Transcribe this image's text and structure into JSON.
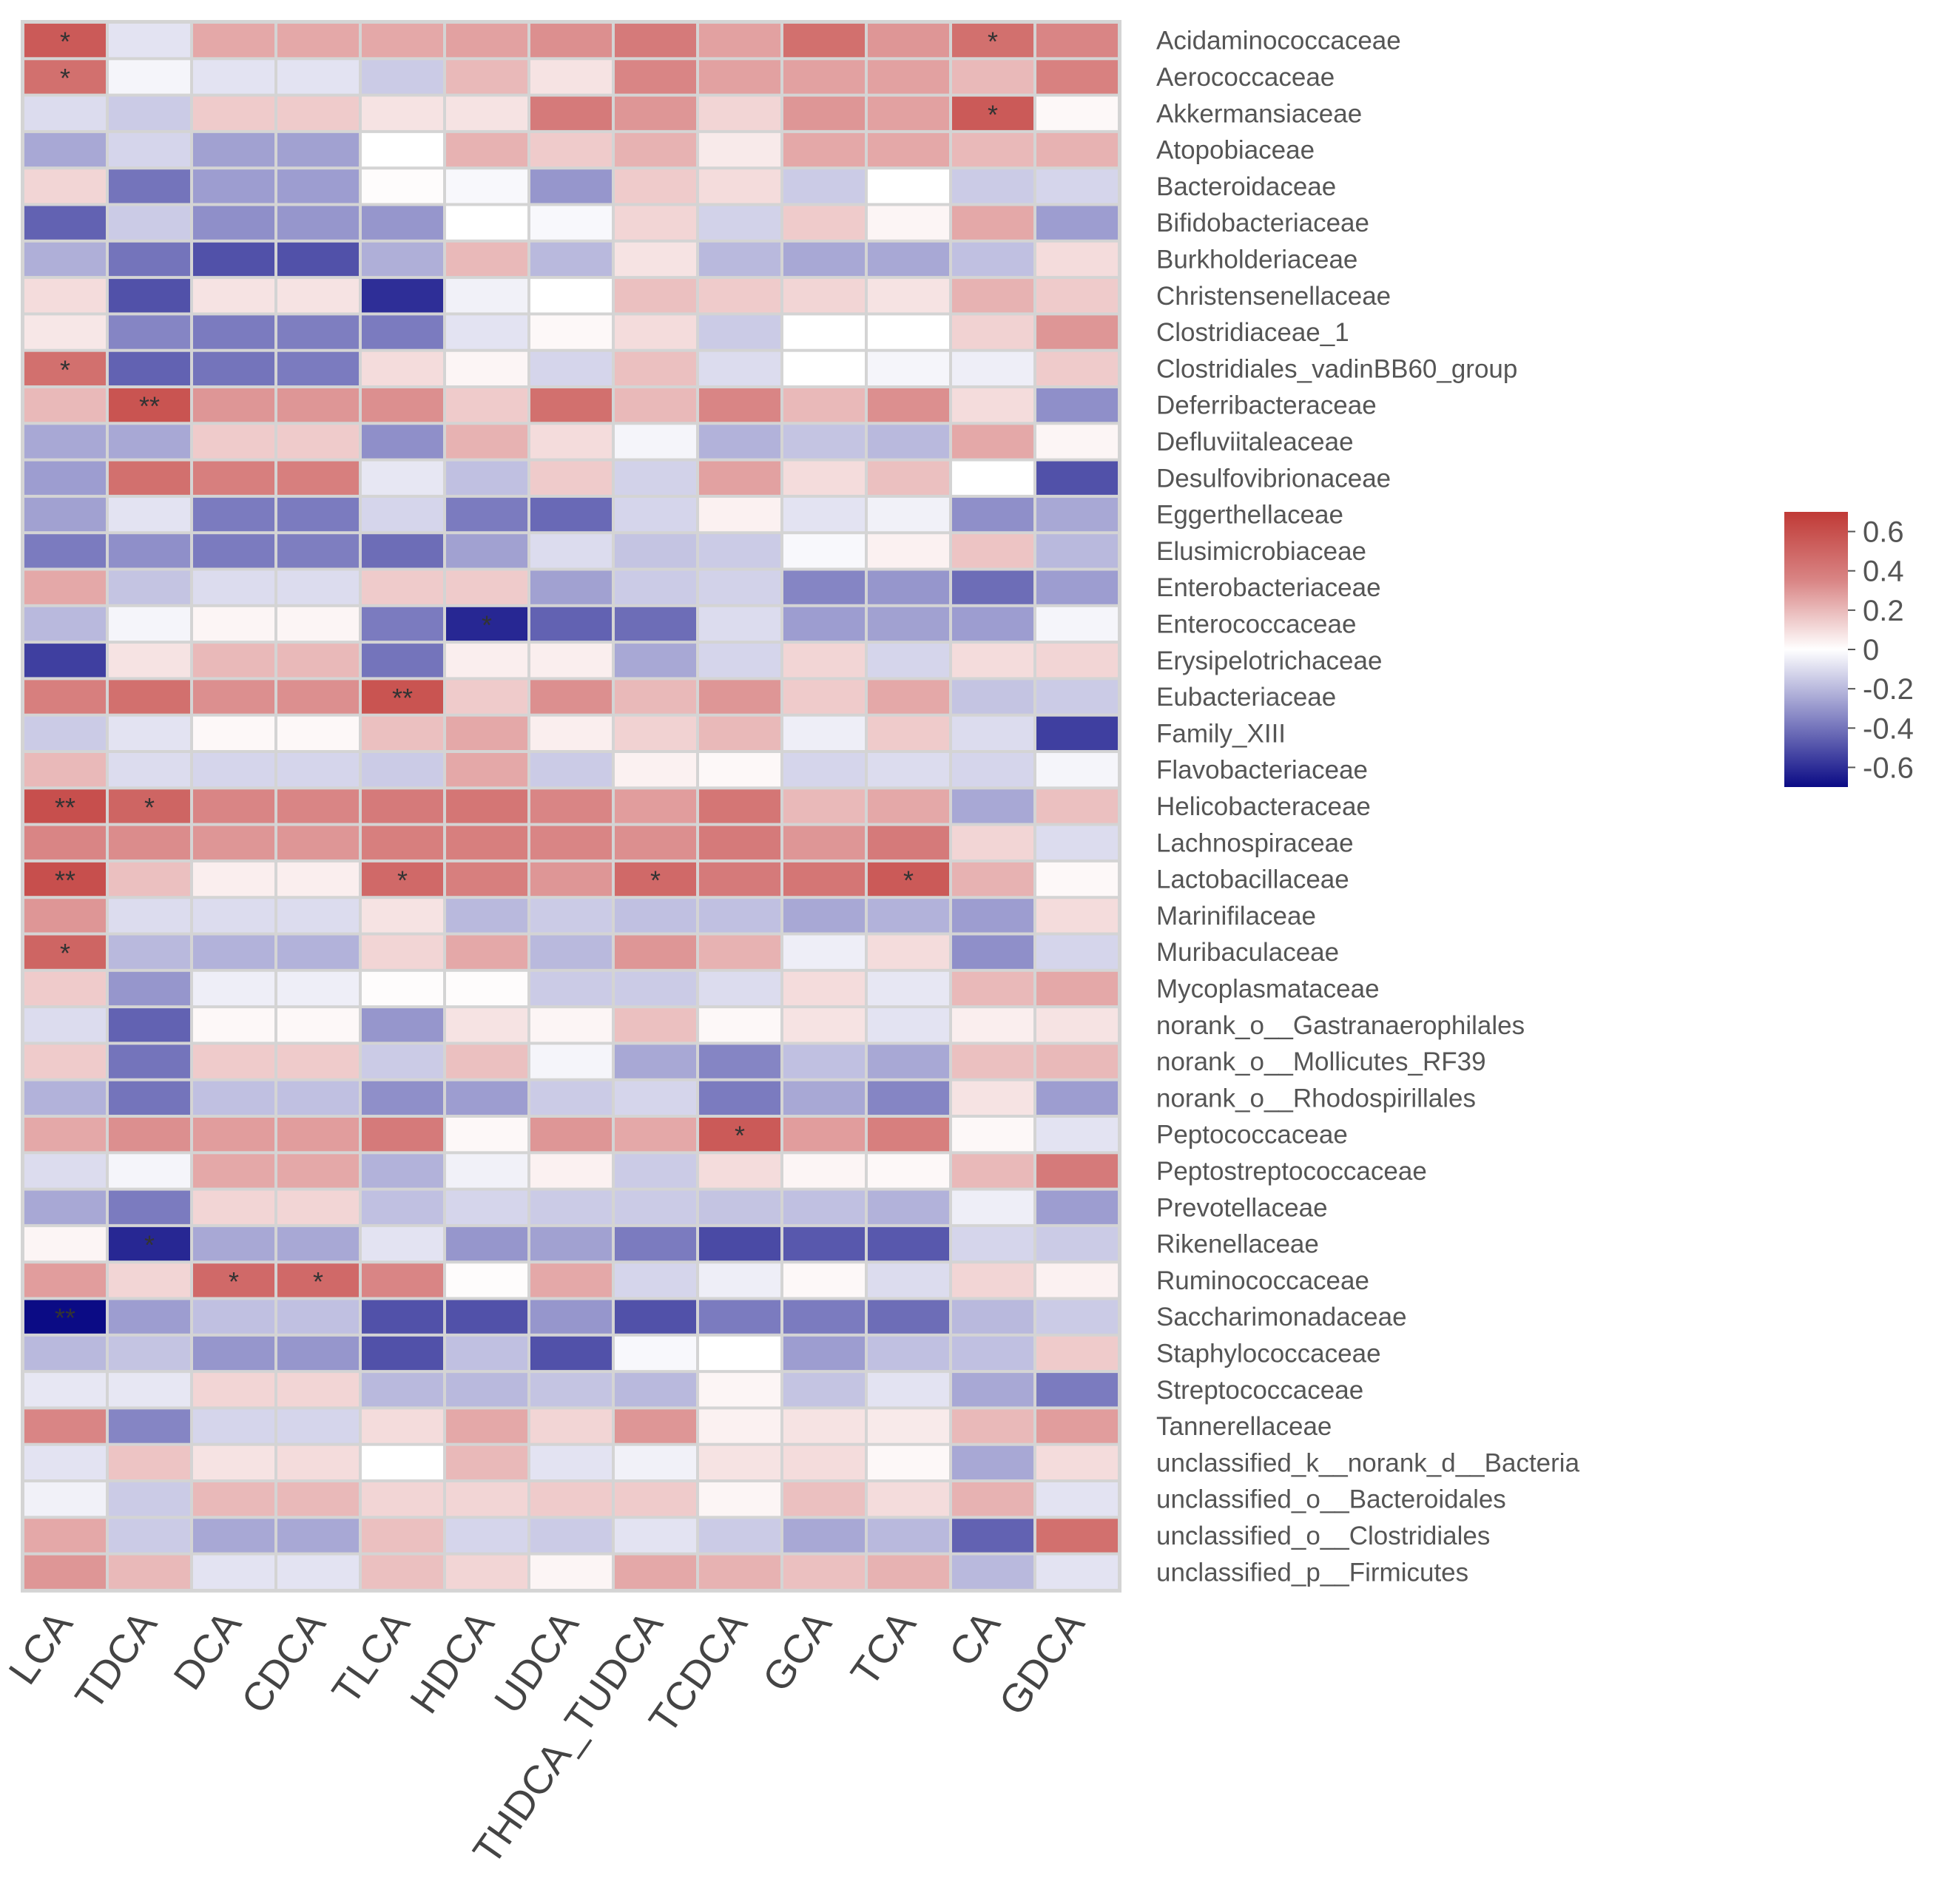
{
  "chart_data": {
    "type": "heatmap",
    "title": "",
    "xlabel": "",
    "ylabel": "",
    "columns": [
      "LCA",
      "TDCA",
      "DCA",
      "CDCA",
      "TLCA",
      "HDCA",
      "UDCA",
      "THDCA_TUDCA",
      "TCDCA",
      "GCA",
      "TCA",
      "CA",
      "GDCA"
    ],
    "rows": [
      "Acidaminococcaceae",
      "Aerococcaceae",
      "Akkermansiaceae",
      "Atopobiaceae",
      "Bacteroidaceae",
      "Bifidobacteriaceae",
      "Burkholderiaceae",
      "Christensenellaceae",
      "Clostridiaceae_1",
      "Clostridiales_vadinBB60_group",
      "Deferribacteraceae",
      "Defluviitaleaceae",
      "Desulfovibrionaceae",
      "Eggerthellaceae",
      "Elusimicrobiaceae",
      "Enterobacteriaceae",
      "Enterococcaceae",
      "Erysipelotrichaceae",
      "Eubacteriaceae",
      "Family_XIII",
      "Flavobacteriaceae",
      "Helicobacteraceae",
      "Lachnospiraceae",
      "Lactobacillaceae",
      "Marinifilaceae",
      "Muribaculaceae",
      "Mycoplasmataceae",
      "norank_o__Gastranaerophilales",
      "norank_o__Mollicutes_RF39",
      "norank_o__Rhodospirillales",
      "Peptococcaceae",
      "Peptostreptococcaceae",
      "Prevotellaceae",
      "Rikenellaceae",
      "Ruminococcaceae",
      "Saccharimonadaceae",
      "Staphylococcaceae",
      "Streptococcaceae",
      "Tannerellaceae",
      "unclassified_k__norank_d__Bacteria",
      "unclassified_o__Bacteroidales",
      "unclassified_o__Clostridiales",
      "unclassified_p__Firmicutes"
    ],
    "values": [
      [
        0.55,
        -0.08,
        0.25,
        0.25,
        0.25,
        0.27,
        0.32,
        0.4,
        0.27,
        0.45,
        0.3,
        0.45,
        0.35
      ],
      [
        0.45,
        -0.03,
        -0.08,
        -0.08,
        -0.15,
        0.2,
        0.08,
        0.35,
        0.27,
        0.27,
        0.27,
        0.2,
        0.37
      ],
      [
        -0.1,
        -0.15,
        0.15,
        0.15,
        0.08,
        0.08,
        0.4,
        0.3,
        0.12,
        0.3,
        0.27,
        0.55,
        0.02
      ],
      [
        -0.25,
        -0.12,
        -0.27,
        -0.27,
        0,
        0.22,
        0.15,
        0.22,
        0.06,
        0.25,
        0.25,
        0.2,
        0.22
      ],
      [
        0.12,
        -0.4,
        -0.28,
        -0.28,
        0.01,
        -0.02,
        -0.3,
        0.15,
        0.1,
        -0.15,
        0,
        -0.15,
        -0.12
      ],
      [
        -0.45,
        -0.15,
        -0.32,
        -0.3,
        -0.3,
        0,
        -0.02,
        0.12,
        -0.13,
        0.15,
        0.03,
        0.25,
        -0.28
      ],
      [
        -0.23,
        -0.4,
        -0.5,
        -0.5,
        -0.23,
        0.2,
        -0.2,
        0.08,
        -0.2,
        -0.25,
        -0.25,
        -0.18,
        0.1
      ],
      [
        0.1,
        -0.5,
        0.08,
        0.08,
        -0.6,
        -0.04,
        0,
        0.18,
        0.15,
        0.12,
        0.08,
        0.22,
        0.15
      ],
      [
        0.07,
        -0.35,
        -0.38,
        -0.37,
        -0.38,
        -0.08,
        0.02,
        0.1,
        -0.15,
        0,
        0,
        0.13,
        0.3
      ],
      [
        0.45,
        -0.45,
        -0.4,
        -0.38,
        0.1,
        0.03,
        -0.12,
        0.18,
        -0.1,
        0,
        -0.03,
        -0.05,
        0.15
      ],
      [
        0.2,
        0.58,
        0.3,
        0.3,
        0.32,
        0.15,
        0.45,
        0.2,
        0.35,
        0.2,
        0.32,
        0.1,
        -0.32
      ],
      [
        -0.25,
        -0.25,
        0.15,
        0.15,
        -0.32,
        0.22,
        0.1,
        -0.03,
        -0.22,
        -0.17,
        -0.2,
        0.25,
        0.03
      ],
      [
        -0.28,
        0.45,
        0.38,
        0.38,
        -0.07,
        -0.18,
        0.15,
        -0.13,
        0.27,
        0.1,
        0.18,
        0,
        -0.5
      ],
      [
        -0.27,
        -0.08,
        -0.38,
        -0.38,
        -0.12,
        -0.38,
        -0.43,
        -0.12,
        0.04,
        -0.08,
        -0.04,
        -0.32,
        -0.25
      ],
      [
        -0.38,
        -0.32,
        -0.38,
        -0.37,
        -0.42,
        -0.27,
        -0.1,
        -0.17,
        -0.15,
        -0.02,
        0.04,
        0.17,
        -0.2
      ],
      [
        0.25,
        -0.17,
        -0.1,
        -0.1,
        0.15,
        0.15,
        -0.27,
        -0.15,
        -0.13,
        -0.35,
        -0.3,
        -0.42,
        -0.28
      ],
      [
        -0.2,
        -0.03,
        0.03,
        0.03,
        -0.38,
        -0.62,
        -0.45,
        -0.42,
        -0.1,
        -0.28,
        -0.27,
        -0.28,
        -0.03
      ],
      [
        -0.55,
        0.08,
        0.2,
        0.2,
        -0.4,
        0.05,
        0.05,
        -0.25,
        -0.12,
        0.12,
        -0.12,
        0.1,
        0.12
      ],
      [
        0.38,
        0.45,
        0.32,
        0.32,
        0.58,
        0.15,
        0.32,
        0.2,
        0.3,
        0.15,
        0.25,
        -0.17,
        -0.15
      ],
      [
        -0.15,
        -0.08,
        0.02,
        0.02,
        0.18,
        0.25,
        0.05,
        0.13,
        0.2,
        -0.05,
        0.15,
        -0.1,
        -0.55
      ],
      [
        0.2,
        -0.1,
        -0.12,
        -0.12,
        -0.15,
        0.25,
        -0.15,
        0.04,
        0.02,
        -0.12,
        -0.1,
        -0.12,
        -0.03
      ],
      [
        0.6,
        0.5,
        0.35,
        0.35,
        0.4,
        0.42,
        0.35,
        0.28,
        0.42,
        0.2,
        0.25,
        -0.25,
        0.18
      ],
      [
        0.35,
        0.33,
        0.3,
        0.3,
        0.38,
        0.38,
        0.35,
        0.32,
        0.4,
        0.3,
        0.4,
        0.12,
        -0.1
      ],
      [
        0.6,
        0.18,
        0.05,
        0.05,
        0.48,
        0.38,
        0.3,
        0.48,
        0.4,
        0.42,
        0.55,
        0.22,
        0.02
      ],
      [
        0.3,
        -0.1,
        -0.1,
        -0.1,
        0.08,
        -0.2,
        -0.15,
        -0.18,
        -0.18,
        -0.25,
        -0.22,
        -0.28,
        0.1
      ],
      [
        0.5,
        -0.2,
        -0.22,
        -0.22,
        0.12,
        0.25,
        -0.2,
        0.3,
        0.22,
        -0.05,
        0.1,
        -0.32,
        -0.12
      ],
      [
        0.15,
        -0.3,
        -0.05,
        -0.05,
        0.01,
        0.01,
        -0.15,
        -0.15,
        -0.1,
        0.1,
        -0.07,
        0.2,
        0.25
      ],
      [
        -0.1,
        -0.45,
        0.02,
        0.02,
        -0.3,
        0.08,
        0.03,
        0.18,
        0.02,
        0.08,
        -0.08,
        0.05,
        0.08
      ],
      [
        0.15,
        -0.4,
        0.15,
        0.15,
        -0.15,
        0.18,
        -0.03,
        -0.25,
        -0.35,
        -0.18,
        -0.25,
        0.18,
        0.2
      ],
      [
        -0.22,
        -0.4,
        -0.18,
        -0.18,
        -0.32,
        -0.28,
        -0.15,
        -0.12,
        -0.38,
        -0.25,
        -0.35,
        0.08,
        -0.28
      ],
      [
        0.25,
        0.32,
        0.28,
        0.28,
        0.4,
        0.02,
        0.3,
        0.25,
        0.55,
        0.28,
        0.38,
        0.02,
        -0.08
      ],
      [
        -0.1,
        -0.03,
        0.25,
        0.25,
        -0.22,
        -0.04,
        0.04,
        -0.15,
        0.1,
        0.03,
        0.02,
        0.2,
        0.4
      ],
      [
        -0.25,
        -0.38,
        0.12,
        0.12,
        -0.18,
        -0.12,
        -0.15,
        -0.15,
        -0.17,
        -0.18,
        -0.22,
        -0.05,
        -0.28
      ],
      [
        0.03,
        -0.62,
        -0.25,
        -0.25,
        -0.08,
        -0.3,
        -0.27,
        -0.38,
        -0.52,
        -0.48,
        -0.48,
        -0.12,
        -0.15
      ],
      [
        0.28,
        0.12,
        0.48,
        0.48,
        0.35,
        0.01,
        0.25,
        -0.12,
        -0.05,
        0.02,
        -0.1,
        0.12,
        0.04
      ],
      [
        -0.7,
        -0.28,
        -0.18,
        -0.18,
        -0.5,
        -0.5,
        -0.3,
        -0.5,
        -0.38,
        -0.38,
        -0.42,
        -0.2,
        -0.15
      ],
      [
        -0.2,
        -0.17,
        -0.3,
        -0.3,
        -0.5,
        -0.18,
        -0.5,
        -0.02,
        0,
        -0.28,
        -0.18,
        -0.18,
        0.15
      ],
      [
        -0.07,
        -0.07,
        0.12,
        0.12,
        -0.2,
        -0.2,
        -0.17,
        -0.2,
        0.03,
        -0.17,
        -0.08,
        -0.25,
        -0.38
      ],
      [
        0.35,
        -0.35,
        -0.12,
        -0.12,
        0.1,
        0.25,
        0.12,
        0.3,
        0.04,
        0.08,
        0.06,
        0.2,
        0.28
      ],
      [
        -0.08,
        0.17,
        0.08,
        0.1,
        0,
        0.2,
        -0.08,
        -0.04,
        0.08,
        0.1,
        0.02,
        -0.25,
        0.1
      ],
      [
        -0.04,
        -0.15,
        0.2,
        0.2,
        0.12,
        0.12,
        0.15,
        0.15,
        0.03,
        0.18,
        0.1,
        0.22,
        -0.08
      ],
      [
        0.25,
        -0.15,
        -0.25,
        -0.25,
        0.18,
        -0.12,
        -0.15,
        -0.08,
        -0.15,
        -0.25,
        -0.2,
        -0.45,
        0.45
      ],
      [
        0.3,
        0.2,
        -0.08,
        -0.08,
        0.18,
        0.12,
        0.03,
        0.25,
        0.22,
        0.18,
        0.22,
        -0.2,
        -0.08
      ]
    ],
    "significance": [
      {
        "row": 0,
        "col": 0,
        "mark": "*"
      },
      {
        "row": 0,
        "col": 11,
        "mark": "*"
      },
      {
        "row": 1,
        "col": 0,
        "mark": "*"
      },
      {
        "row": 2,
        "col": 11,
        "mark": "*"
      },
      {
        "row": 9,
        "col": 0,
        "mark": "*"
      },
      {
        "row": 10,
        "col": 1,
        "mark": "**"
      },
      {
        "row": 16,
        "col": 5,
        "mark": "*"
      },
      {
        "row": 18,
        "col": 4,
        "mark": "**"
      },
      {
        "row": 21,
        "col": 0,
        "mark": "**"
      },
      {
        "row": 21,
        "col": 1,
        "mark": "*"
      },
      {
        "row": 23,
        "col": 0,
        "mark": "**"
      },
      {
        "row": 23,
        "col": 4,
        "mark": "*"
      },
      {
        "row": 23,
        "col": 7,
        "mark": "*"
      },
      {
        "row": 23,
        "col": 10,
        "mark": "*"
      },
      {
        "row": 25,
        "col": 0,
        "mark": "*"
      },
      {
        "row": 30,
        "col": 8,
        "mark": "*"
      },
      {
        "row": 33,
        "col": 1,
        "mark": "*"
      },
      {
        "row": 34,
        "col": 2,
        "mark": "*"
      },
      {
        "row": 34,
        "col": 3,
        "mark": "*"
      },
      {
        "row": 35,
        "col": 0,
        "mark": "**"
      }
    ],
    "colorbar": {
      "range": [
        -0.7,
        0.7
      ],
      "ticks": [
        0.6,
        0.4,
        0.2,
        0,
        -0.2,
        -0.4,
        -0.6
      ],
      "tick_labels": [
        "0.6",
        "0.4",
        "0.2",
        "0",
        "-0.2",
        "-0.4",
        "-0.6"
      ],
      "low_color": "#0b0b85",
      "mid_color": "#ffffff",
      "high_color": "#c03a36"
    },
    "legend": "right"
  }
}
